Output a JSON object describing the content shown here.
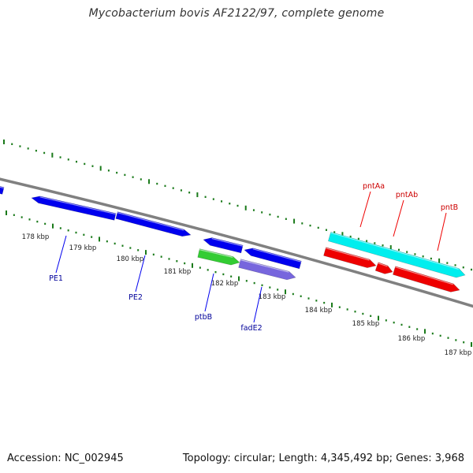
{
  "title": "Mycobacterium bovis AF2122/97, complete genome",
  "footer": {
    "accession": "Accession: NC_002945",
    "summary": "Topology: circular; Length: 4,345,492 bp; Genes: 3,968"
  },
  "colors": {
    "backbone": "#808080",
    "tick": "#1a7a1a",
    "blue": "#0000ee",
    "green": "#33cc33",
    "purple": "#7766dd",
    "cyan": "#00eeee",
    "red": "#ee0000",
    "label_blue": "#000099",
    "label_red": "#cc0000"
  },
  "chart_data": {
    "type": "genome-map",
    "kbp_labels": [
      "178 kbp",
      "179 kbp",
      "180 kbp",
      "181 kbp",
      "182 kbp",
      "183 kbp",
      "184 kbp",
      "185 kbp",
      "186 kbp",
      "187 kbp"
    ],
    "features": [
      {
        "color": "blue",
        "strand": "reverse"
      },
      {
        "color": "blue",
        "strand": "reverse"
      },
      {
        "color": "blue",
        "strand": "forward"
      },
      {
        "color": "blue",
        "strand": "forward"
      },
      {
        "color": "blue",
        "strand": "reverse"
      },
      {
        "color": "blue",
        "strand": "reverse"
      },
      {
        "color": "green",
        "strand": "forward"
      },
      {
        "color": "purple",
        "strand": "forward"
      },
      {
        "color": "cyan",
        "strand": "forward"
      },
      {
        "color": "red",
        "strand": "forward"
      },
      {
        "color": "red",
        "strand": "forward"
      },
      {
        "color": "red",
        "strand": "forward"
      }
    ],
    "gene_labels": [
      {
        "text": "PE1",
        "color": "blue"
      },
      {
        "text": "PE2",
        "color": "blue"
      },
      {
        "text": "ptbB",
        "color": "blue"
      },
      {
        "text": "fadE2",
        "color": "blue"
      },
      {
        "text": "pntAa",
        "color": "red"
      },
      {
        "text": "pntAb",
        "color": "red"
      },
      {
        "text": "pntB",
        "color": "red"
      }
    ]
  }
}
